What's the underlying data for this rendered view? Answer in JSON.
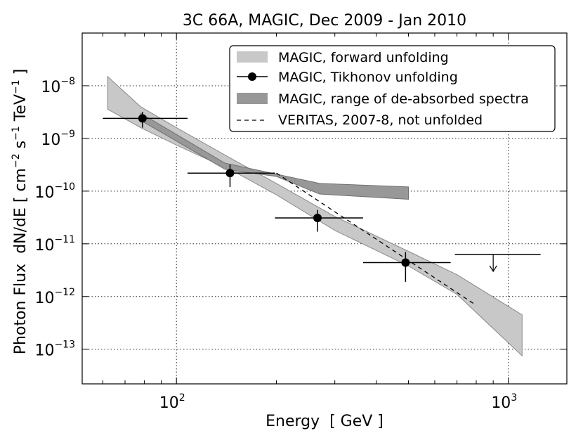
{
  "chart_data": {
    "type": "scatter",
    "title": "3C 66A, MAGIC, Dec 2009 - Jan 2010",
    "xlabel": "Energy  [ GeV ]",
    "ylabel": "Photon Flux  dN/dE [ cm^-2 s^-1 TeV^-1 ]",
    "ylabel_parts": {
      "a": "Photon Flux  dN/dE [ cm",
      "e1": "−2",
      "b": " s",
      "e2": "−1",
      "c": " TeV",
      "e3": "−1",
      "d": " ]"
    },
    "xscale": "log",
    "yscale": "log",
    "xlim": [
      52,
      1500
    ],
    "ylim": [
      2.2e-14,
      1e-07
    ],
    "x_ticks": [
      {
        "value": 100,
        "base": "10",
        "exp": "2"
      },
      {
        "value": 1000,
        "base": "10",
        "exp": "3"
      }
    ],
    "y_ticks": [
      {
        "value": 1e-13,
        "base": "10",
        "exp": "−13"
      },
      {
        "value": 1e-12,
        "base": "10",
        "exp": "−12"
      },
      {
        "value": 1e-11,
        "base": "10",
        "exp": "−11"
      },
      {
        "value": 1e-10,
        "base": "10",
        "exp": "−10"
      },
      {
        "value": 1e-09,
        "base": "10",
        "exp": "−9"
      },
      {
        "value": 1e-08,
        "base": "10",
        "exp": "−8"
      }
    ],
    "grid": true,
    "legend_location": "top-right",
    "series": [
      {
        "name": "MAGIC, forward unfolding",
        "kind": "band",
        "color": "#c8c8c8",
        "edge": "#8a8a8a",
        "x": [
          62,
          78,
          100,
          150,
          200,
          300,
          500,
          700,
          1100
        ],
        "upper": [
          1.5e-08,
          4e-09,
          1.6e-09,
          3.8e-10,
          1.4e-10,
          3.3e-11,
          7.2e-12,
          2.6e-12,
          4.5e-13
        ],
        "lower": [
          3.6e-09,
          1.6e-09,
          7.5e-10,
          2.3e-10,
          8.5e-11,
          1.8e-11,
          3.8e-12,
          1.1e-12,
          7.5e-14
        ]
      },
      {
        "name": "MAGIC, Tikhonov unfolding",
        "kind": "points",
        "color": "#000000",
        "points": [
          {
            "x": 79,
            "y": 2.4e-09,
            "xlo": 60,
            "xhi": 108,
            "ylo": 1.6e-09,
            "yhi": 3.2e-09
          },
          {
            "x": 145,
            "y": 2.2e-10,
            "xlo": 108,
            "xhi": 198,
            "ylo": 1.2e-10,
            "yhi": 3.2e-10
          },
          {
            "x": 266,
            "y": 3.1e-11,
            "xlo": 198,
            "xhi": 365,
            "ylo": 1.7e-11,
            "yhi": 4.4e-11
          },
          {
            "x": 490,
            "y": 4.4e-12,
            "xlo": 365,
            "xhi": 670,
            "ylo": 1.9e-12,
            "yhi": 7e-12
          }
        ],
        "upper_limit": {
          "x": 900,
          "y": 6.3e-12,
          "xlo": 690,
          "xhi": 1250,
          "arrow_to": 3e-12
        }
      },
      {
        "name": "MAGIC, range of de-absorbed spectra",
        "kind": "band",
        "color": "#989898",
        "edge": "#707070",
        "x": [
          78,
          140,
          200,
          270,
          500
        ],
        "upper": [
          3e-09,
          3.4e-10,
          2.1e-10,
          1.4e-10,
          1.2e-10
        ],
        "lower": [
          2.2e-09,
          2.6e-10,
          1.9e-10,
          8.8e-11,
          7e-11
        ]
      },
      {
        "name": "VERITAS, 2007-8, not unfolded",
        "kind": "dashed-line",
        "color": "#000000",
        "x": [
          200,
          800
        ],
        "y": [
          2.2e-10,
          6.8e-13
        ]
      }
    ]
  }
}
